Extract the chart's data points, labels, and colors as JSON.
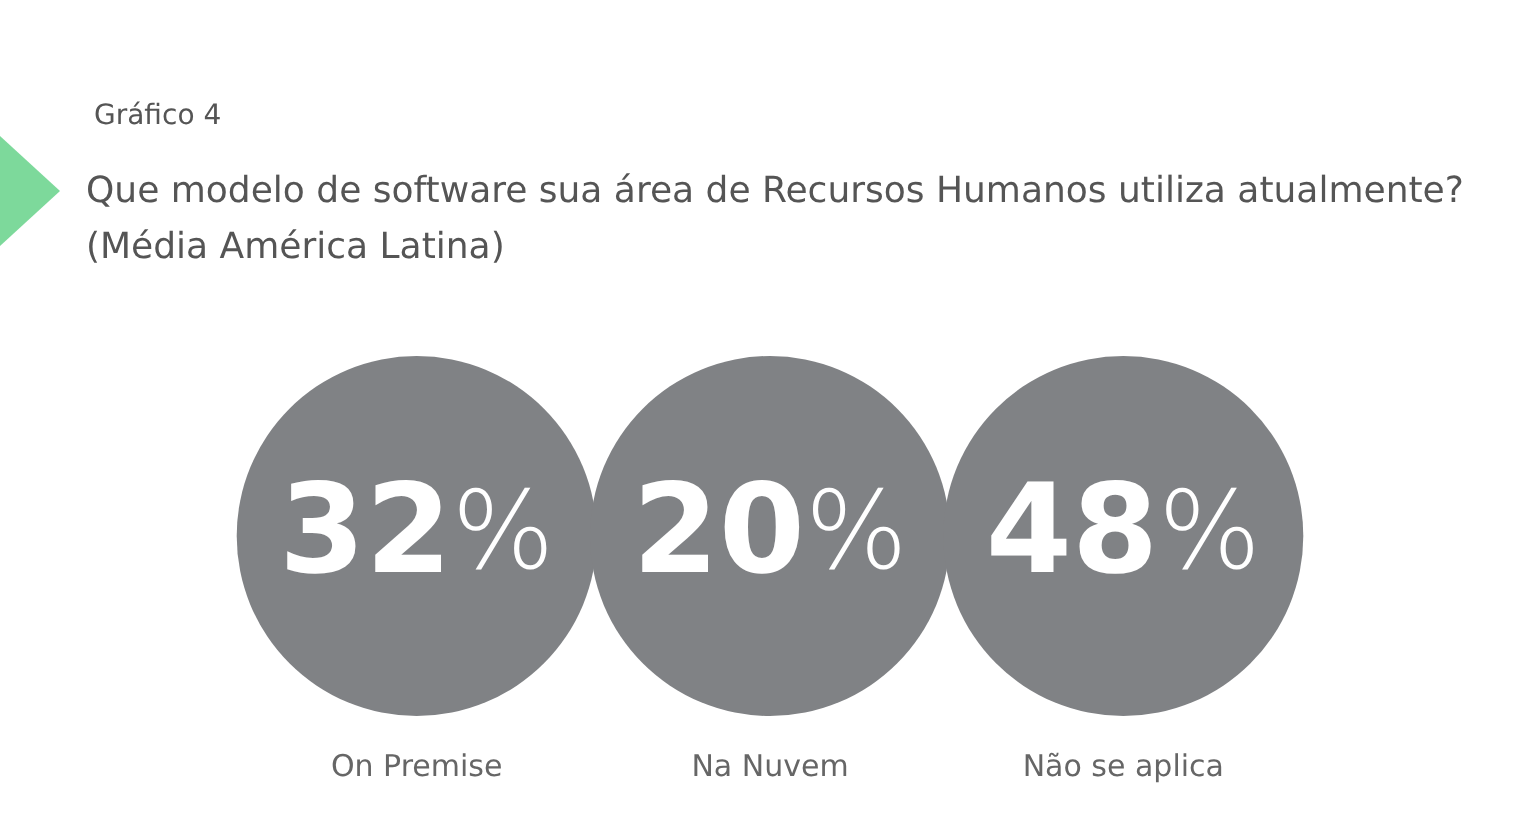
{
  "chart_data": {
    "type": "other",
    "title": "Que modelo de software sua área de Recursos Humanos utiliza atualmente? (Média América Latina)",
    "annotations": [
      "Gráfico 4"
    ],
    "categories": [
      "On Premise",
      "Na Nuvem",
      "Não se aplica"
    ],
    "values": [
      32,
      20,
      48
    ],
    "value_labels": [
      "32%",
      "20%",
      "48%"
    ],
    "color": "#808285"
  }
}
